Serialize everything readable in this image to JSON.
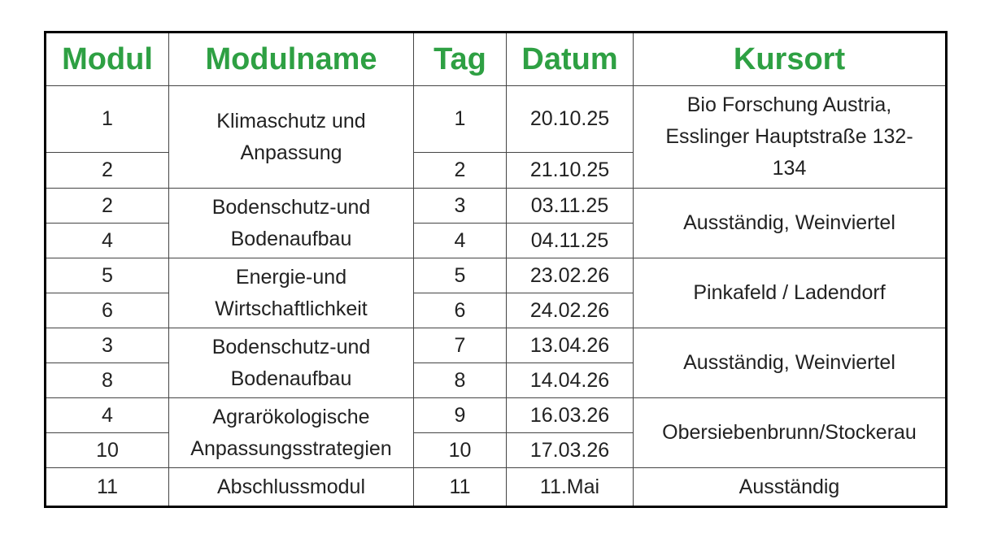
{
  "table": {
    "header": [
      "Modul",
      "Modulname",
      "Tag",
      "Datum",
      "Kursort"
    ],
    "groups": [
      {
        "modulname": "Klimaschutz und\nAnpassung",
        "kursort": "Bio Forschung Austria,\nEsslinger Hauptstraße 132-\n134",
        "rows": [
          {
            "modul": 1,
            "tag": 1,
            "datum": "20.10.25"
          },
          {
            "modul": 2,
            "tag": 2,
            "datum": "21.10.25"
          }
        ]
      },
      {
        "modulname": "Bodenschutz-und\nBodenaufbau",
        "kursort": "Ausständig, Weinviertel",
        "rows": [
          {
            "modul": 2,
            "tag": 3,
            "datum": "03.11.25"
          },
          {
            "modul": 4,
            "tag": 4,
            "datum": "04.11.25"
          }
        ]
      },
      {
        "modulname": "Energie-und\nWirtschaftlichkeit",
        "kursort": "Pinkafeld / Ladendorf",
        "rows": [
          {
            "modul": 5,
            "tag": 5,
            "datum": "23.02.26"
          },
          {
            "modul": 6,
            "tag": 6,
            "datum": "24.02.26"
          }
        ]
      },
      {
        "modulname": "Bodenschutz-und\nBodenaufbau",
        "kursort": "Ausständig, Weinviertel",
        "rows": [
          {
            "modul": 3,
            "tag": 7,
            "datum": "13.04.26"
          },
          {
            "modul": 8,
            "tag": 8,
            "datum": "14.04.26"
          }
        ]
      },
      {
        "modulname": "Agrarökologische\nAnpassungsstrategien",
        "kursort": "Obersiebenbrunn/Stockerau",
        "rows": [
          {
            "modul": 4,
            "tag": 9,
            "datum": "16.03.26"
          },
          {
            "modul": 10,
            "tag": 10,
            "datum": "17.03.26"
          }
        ]
      },
      {
        "modulname": "Abschlussmodul",
        "kursort": "Ausständig",
        "rows": [
          {
            "modul": 11,
            "tag": 11,
            "datum": "11.Mai"
          }
        ]
      }
    ]
  }
}
